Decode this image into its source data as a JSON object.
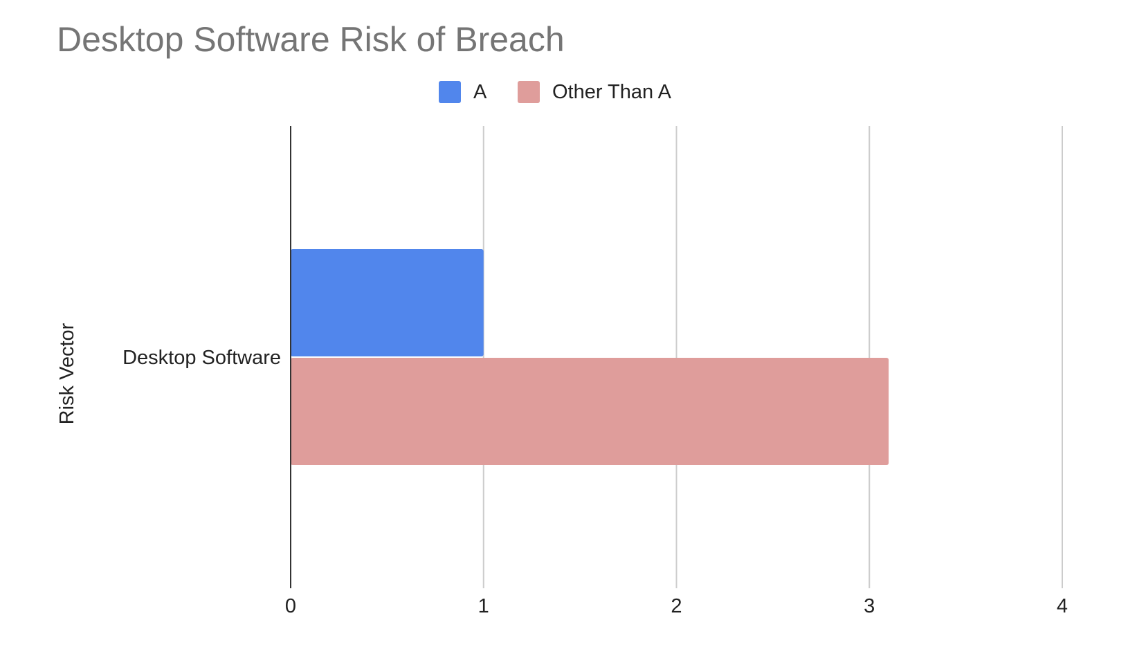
{
  "chart_data": {
    "type": "bar",
    "orientation": "horizontal",
    "title": "Desktop Software Risk of Breach",
    "ylabel": "Risk Vector",
    "xlabel": "",
    "categories": [
      "Desktop Software"
    ],
    "series": [
      {
        "name": "A",
        "values": [
          1
        ],
        "color": "#5186ec"
      },
      {
        "name": "Other Than A",
        "values": [
          3.1
        ],
        "color": "#df9d9b"
      }
    ],
    "xlim": [
      0,
      4
    ],
    "xticks": [
      "0",
      "1",
      "2",
      "3",
      "4"
    ],
    "grid": true,
    "legend_position": "top-center"
  }
}
